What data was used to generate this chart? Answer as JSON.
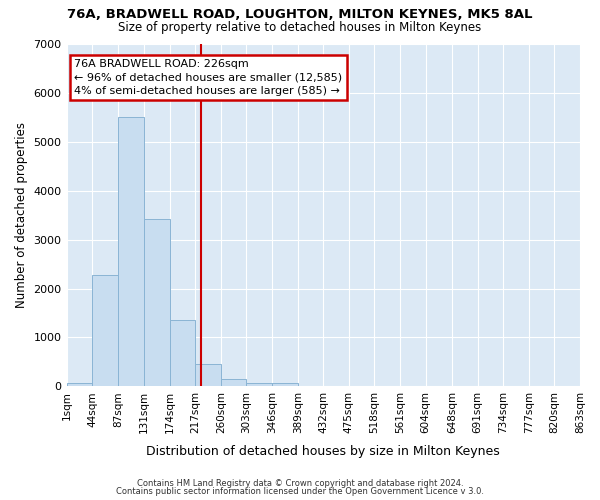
{
  "title1": "76A, BRADWELL ROAD, LOUGHTON, MILTON KEYNES, MK5 8AL",
  "title2": "Size of property relative to detached houses in Milton Keynes",
  "xlabel": "Distribution of detached houses by size in Milton Keynes",
  "ylabel": "Number of detached properties",
  "bin_edges": [
    1,
    44,
    87,
    131,
    174,
    217,
    260,
    303,
    346,
    389,
    432,
    475,
    518,
    561,
    604,
    648,
    691,
    734,
    777,
    820,
    863
  ],
  "bar_heights": [
    75,
    2280,
    5500,
    3430,
    1350,
    460,
    160,
    75,
    75,
    0,
    0,
    0,
    0,
    0,
    0,
    0,
    0,
    0,
    0,
    0
  ],
  "bar_color": "#c8ddf0",
  "bar_edge_color": "#8ab4d4",
  "fig_bg_color": "#ffffff",
  "ax_bg_color": "#dce9f5",
  "grid_color": "#ffffff",
  "property_line_x": 226,
  "property_line_color": "#cc0000",
  "annotation_text": "76A BRADWELL ROAD: 226sqm\n← 96% of detached houses are smaller (12,585)\n4% of semi-detached houses are larger (585) →",
  "annotation_box_color": "#ffffff",
  "annotation_box_edge": "#cc0000",
  "footer_text1": "Contains HM Land Registry data © Crown copyright and database right 2024.",
  "footer_text2": "Contains public sector information licensed under the Open Government Licence v 3.0.",
  "ylim": [
    0,
    7000
  ],
  "tick_labels": [
    "1sqm",
    "44sqm",
    "87sqm",
    "131sqm",
    "174sqm",
    "217sqm",
    "260sqm",
    "303sqm",
    "346sqm",
    "389sqm",
    "432sqm",
    "475sqm",
    "518sqm",
    "561sqm",
    "604sqm",
    "648sqm",
    "691sqm",
    "734sqm",
    "777sqm",
    "820sqm",
    "863sqm"
  ]
}
